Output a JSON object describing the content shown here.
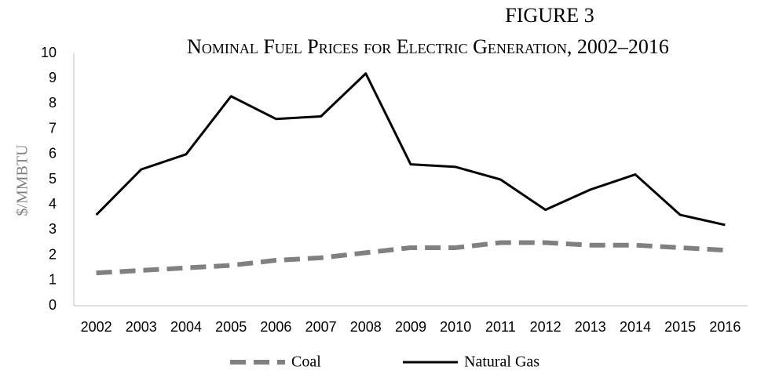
{
  "chart_data": {
    "type": "line",
    "title": "FIGURE 3",
    "subtitle": "Nominal Fuel Prices for Electric Generation, 2002–2016",
    "y_label": "$/MMBTU",
    "categories": [
      "2002",
      "2003",
      "2004",
      "2005",
      "2006",
      "2007",
      "2008",
      "2009",
      "2010",
      "2011",
      "2012",
      "2013",
      "2014",
      "2015",
      "2016"
    ],
    "series": [
      {
        "name": "Coal",
        "color": "#808080",
        "dashed": true,
        "values": [
          1.3,
          1.4,
          1.5,
          1.6,
          1.8,
          1.9,
          2.1,
          2.3,
          2.3,
          2.5,
          2.5,
          2.4,
          2.4,
          2.3,
          2.2
        ]
      },
      {
        "name": "Natural Gas",
        "color": "#000000",
        "dashed": false,
        "values": [
          3.6,
          5.4,
          6.0,
          8.3,
          7.4,
          7.5,
          9.2,
          5.6,
          5.5,
          5.0,
          3.8,
          4.6,
          5.2,
          3.6,
          3.2
        ]
      }
    ],
    "ylim": [
      0,
      10
    ],
    "yticks": [
      0,
      1,
      2,
      3,
      4,
      5,
      6,
      7,
      8,
      9,
      10
    ],
    "grid": false,
    "legend": "bottom"
  }
}
